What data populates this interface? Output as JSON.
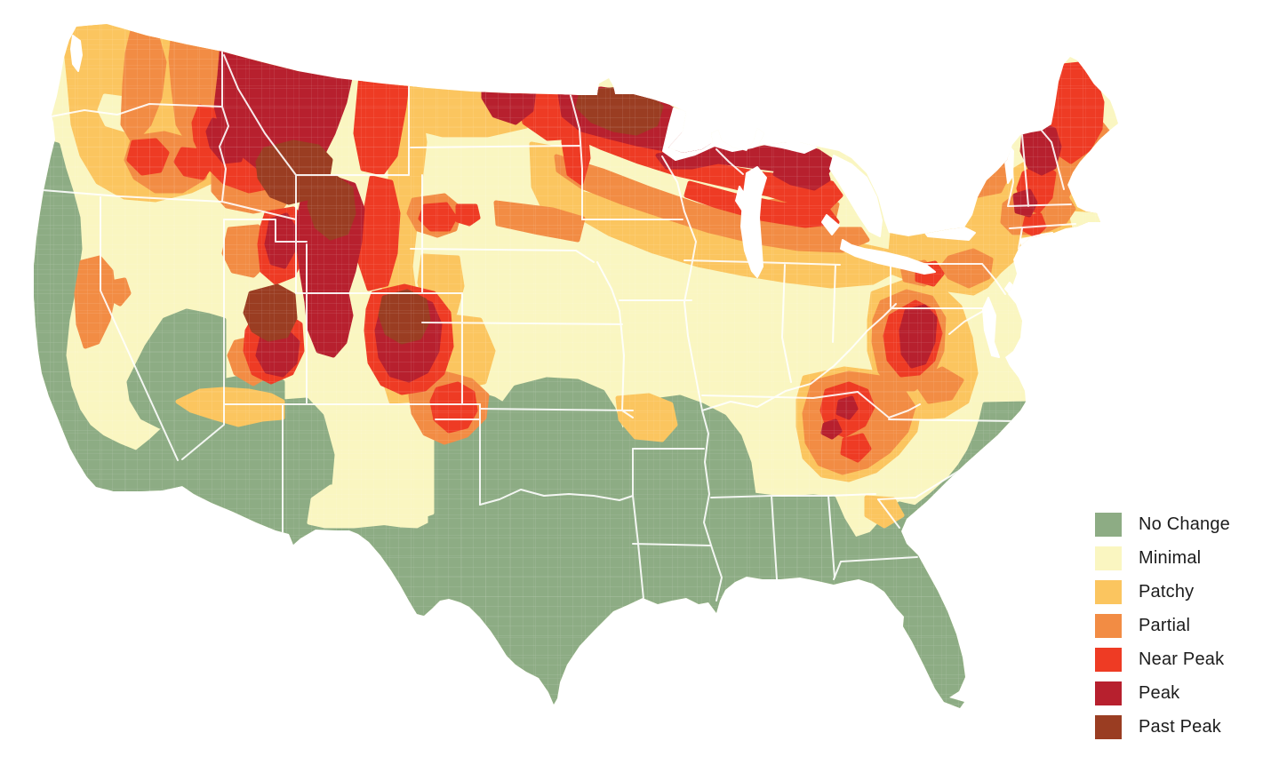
{
  "page": {
    "background": "#FFFFFF"
  },
  "legend": {
    "text_color": "#1C1C1C",
    "items": [
      {
        "key": "no_change",
        "label": "No Change",
        "color": "#8DAC84"
      },
      {
        "key": "minimal",
        "label": "Minimal",
        "color": "#FAF6C1"
      },
      {
        "key": "patchy",
        "label": "Patchy",
        "color": "#FBC55F"
      },
      {
        "key": "partial",
        "label": "Partial",
        "color": "#F28C44"
      },
      {
        "key": "near_peak",
        "label": "Near Peak",
        "color": "#EE3B24"
      },
      {
        "key": "peak",
        "label": "Peak",
        "color": "#B7202E"
      },
      {
        "key": "past_peak",
        "label": "Past Peak",
        "color": "#9A3D22"
      }
    ]
  },
  "map": {
    "water_color": "#FFFFFF",
    "state_border_color": "#FFFFFF",
    "county_line_color": "#FFFFFF"
  }
}
